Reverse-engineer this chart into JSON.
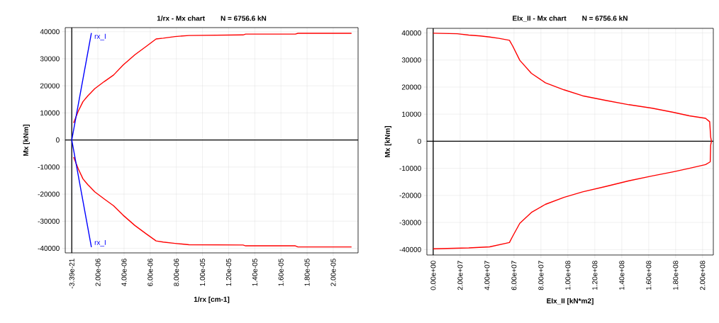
{
  "chart_data": [
    {
      "type": "line",
      "title": "1/rx - Mx chart",
      "subtitle": "N = 6756.6 kN",
      "xlabel": "1/rx [cm-1]",
      "ylabel": "Mx  [kNm]",
      "xlim": [
        -5e-07,
        2.19e-05
      ],
      "ylim": [
        -41700,
        41500
      ],
      "xticks": [
        {
          "value": -3.39e-21,
          "label": "-3.39e-21"
        },
        {
          "value": 2e-06,
          "label": "2.00e-06"
        },
        {
          "value": 4e-06,
          "label": "4.00e-06"
        },
        {
          "value": 6e-06,
          "label": "6.00e-06"
        },
        {
          "value": 8e-06,
          "label": "8.00e-06"
        },
        {
          "value": 1e-05,
          "label": "1.00e-05"
        },
        {
          "value": 1.2e-05,
          "label": "1.20e-05"
        },
        {
          "value": 1.4e-05,
          "label": "1.40e-05"
        },
        {
          "value": 1.6e-05,
          "label": "1.60e-05"
        },
        {
          "value": 1.8e-05,
          "label": "1.80e-05"
        },
        {
          "value": 2e-05,
          "label": "2.00e-05"
        }
      ],
      "yticks": [
        -40000,
        -30000,
        -20000,
        -10000,
        0,
        10000,
        20000,
        30000,
        40000
      ],
      "grid": true,
      "line_style": "solid",
      "marker": "none",
      "series": [
        {
          "color": "#ff0000",
          "x": [
            1.4e-07,
            5e-07,
            8.6e-07,
            1.23e-06,
            1.77e-06,
            2.49e-06,
            3.2e-06,
            3.93e-06,
            4.83e-06,
            5.73e-06,
            6.45e-06,
            7e-06,
            7.9e-06,
            8.97e-06,
            1.31e-05,
            1.33e-05,
            1.71e-05,
            1.73e-05,
            2.14e-05
          ],
          "values": [
            6300,
            10700,
            14200,
            16300,
            19000,
            21600,
            24000,
            27700,
            31500,
            34700,
            37300,
            37600,
            38200,
            38600,
            38800,
            39100,
            39100,
            39400,
            39400
          ]
        },
        {
          "color": "#ff0000",
          "x": [
            1.4e-07,
            5e-07,
            8.6e-07,
            1.23e-06,
            1.77e-06,
            2.49e-06,
            3.2e-06,
            3.93e-06,
            4.83e-06,
            5.73e-06,
            6.45e-06,
            7e-06,
            7.9e-06,
            8.97e-06,
            1.31e-05,
            1.33e-05,
            1.71e-05,
            1.73e-05,
            2.14e-05
          ],
          "values": [
            -6300,
            -10700,
            -14400,
            -16500,
            -19200,
            -21800,
            -24300,
            -27800,
            -31600,
            -34800,
            -37300,
            -37700,
            -38200,
            -38700,
            -38800,
            -39100,
            -39100,
            -39500,
            -39500
          ]
        },
        {
          "color": "#0000ff",
          "x": [
            1.5e-06,
            0,
            1.5e-06
          ],
          "values": [
            39500,
            0,
            -39600
          ]
        }
      ],
      "annotations": [
        {
          "text": "rx_I",
          "x": 1.5e-06,
          "y": 39500
        },
        {
          "text": "rx_I",
          "x": 1.5e-06,
          "y": -39600
        }
      ]
    },
    {
      "type": "line",
      "title": "EIx_II - Mx chart",
      "subtitle": "N = 6756.6 kN",
      "xlabel": "EIx_II [kN*m2]",
      "ylabel": "Mx  [kNm]",
      "xlim": [
        -4700000.0,
        208000000.0
      ],
      "ylim": [
        -42000,
        41700
      ],
      "xticks": [
        {
          "value": 0,
          "label": "0.00e+00"
        },
        {
          "value": 20000000.0,
          "label": "2.00e+07"
        },
        {
          "value": 40000000.0,
          "label": "4.00e+07"
        },
        {
          "value": 60000000.0,
          "label": "6.00e+07"
        },
        {
          "value": 80000000.0,
          "label": "8.00e+07"
        },
        {
          "value": 100000000.0,
          "label": "1.00e+08"
        },
        {
          "value": 120000000.0,
          "label": "1.20e+08"
        },
        {
          "value": 140000000.0,
          "label": "1.40e+08"
        },
        {
          "value": 160000000.0,
          "label": "1.60e+08"
        },
        {
          "value": 180000000.0,
          "label": "1.80e+08"
        },
        {
          "value": 200000000.0,
          "label": "2.00e+08"
        }
      ],
      "yticks": [
        -40000,
        -30000,
        -20000,
        -10000,
        0,
        10000,
        20000,
        30000,
        40000
      ],
      "grid": true,
      "line_style": "solid",
      "marker": "none",
      "series": [
        {
          "color": "#ff0000",
          "x": [
            0,
            17800000.0,
            26400000.0,
            35000000.0,
            41900000.0,
            48800000.0,
            56600000.0,
            59100000.0,
            64300000.0,
            72900000.0,
            83300000.0,
            97100000.0,
            110900000.0,
            128100000.0,
            145300000.0,
            162600000.0,
            178100000.0,
            190200000.0,
            202200000.0,
            205300000.0,
            206000000.0,
            206600000.0,
            206000000.0,
            205700000.0,
            202200000.0,
            190200000.0,
            178100000.0,
            162600000.0,
            145300000.0,
            128100000.0,
            110900000.0,
            97100000.0,
            83300000.0,
            72900000.0,
            64300000.0,
            59100000.0,
            56600000.0,
            41900000.0,
            26400000.0,
            0
          ],
          "values": [
            39900,
            39700,
            39200,
            38900,
            38500,
            38000,
            37300,
            35100,
            29900,
            25100,
            21600,
            19000,
            16800,
            15100,
            13500,
            12200,
            10700,
            9400,
            8500,
            7200,
            1600,
            0,
            -1500,
            -7600,
            -8600,
            -10000,
            -11300,
            -12800,
            -14600,
            -16700,
            -18700,
            -20700,
            -23300,
            -26300,
            -30300,
            -35000,
            -37400,
            -39000,
            -39400,
            -39700
          ]
        }
      ]
    }
  ]
}
